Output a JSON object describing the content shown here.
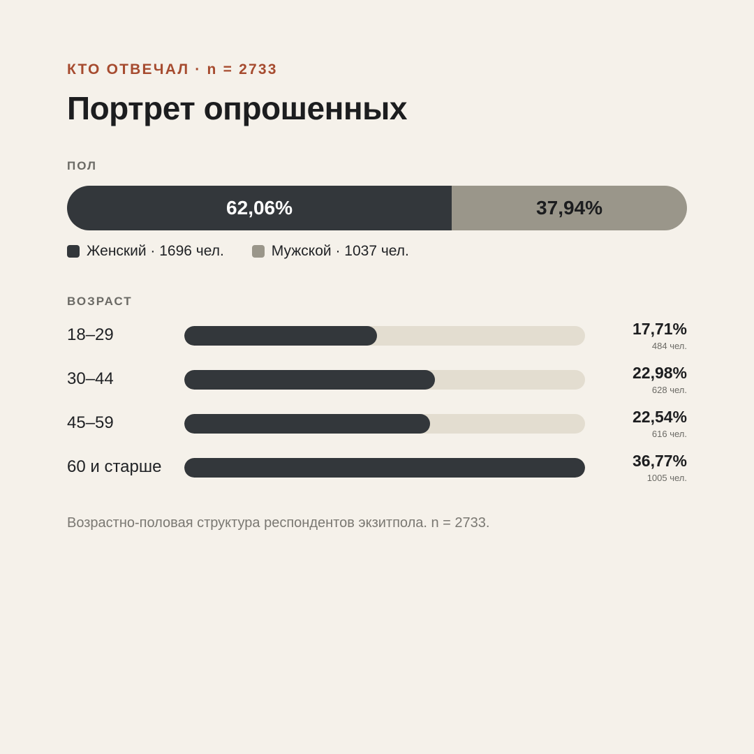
{
  "eyebrow": "КТО ОТВЕЧАЛ · n = 2733",
  "title": "Портрет опрошенных",
  "gender_section_label": "ПОЛ",
  "age_section_label": "ВОЗРАСТ",
  "caption": "Возрастно-половая структура респондентов экзитпола. n = 2733.",
  "colors": {
    "accent": "#a64b2f",
    "female": "#33373b",
    "male": "#9a968a",
    "track": "#e3ddd0",
    "background": "#f5f1ea"
  },
  "chart_data": [
    {
      "type": "bar",
      "stacked": true,
      "title": "ПОЛ",
      "series": [
        {
          "name": "Женский",
          "value": 62.06,
          "label": "62,06%",
          "legend": "Женский · 1696 чел.",
          "count": 1696,
          "color": "#33373b",
          "text_color": "#ffffff"
        },
        {
          "name": "Мужской",
          "value": 37.94,
          "label": "37,94%",
          "legend": "Мужской · 1037 чел.",
          "count": 1037,
          "color": "#9a968a",
          "text_color": "#1c1d1f"
        }
      ]
    },
    {
      "type": "bar",
      "orientation": "horizontal",
      "title": "ВОЗРАСТ",
      "categories": [
        "18–29",
        "30–44",
        "45–59",
        "60 и старше"
      ],
      "values": [
        17.71,
        22.98,
        22.54,
        36.77
      ],
      "value_labels": [
        "17,71%",
        "22,98%",
        "22,54%",
        "36,77%"
      ],
      "counts": [
        "484 чел.",
        "628 чел.",
        "616 чел.",
        "1005 чел."
      ],
      "scale_max": 36.77
    }
  ]
}
